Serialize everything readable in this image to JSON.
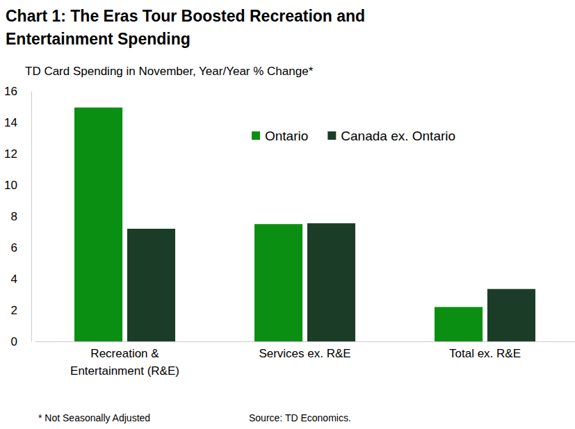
{
  "chart_data": {
    "type": "bar",
    "title": "Chart 1: The Eras Tour Boosted Recreation and Entertainment Spending",
    "subtitle": "TD Card Spending in November, Year/Year % Change*",
    "footnote": "* Not Seasonally Adjusted",
    "source": "Source: TD Economics.",
    "categories": [
      "Recreation & Entertainment (R&E)",
      "Services ex. R&E",
      "Total ex. R&E"
    ],
    "series": [
      {
        "name": "Ontario",
        "color": "#0b8f12",
        "values": [
          14.95,
          7.5,
          2.2
        ]
      },
      {
        "name": "Canada ex. Ontario",
        "color": "#1b3d27",
        "values": [
          7.2,
          7.55,
          3.35
        ]
      }
    ],
    "ylim": [
      0,
      16
    ],
    "yticks": [
      0,
      2,
      4,
      6,
      8,
      10,
      12,
      14,
      16
    ],
    "grid": false,
    "legend": "top"
  }
}
